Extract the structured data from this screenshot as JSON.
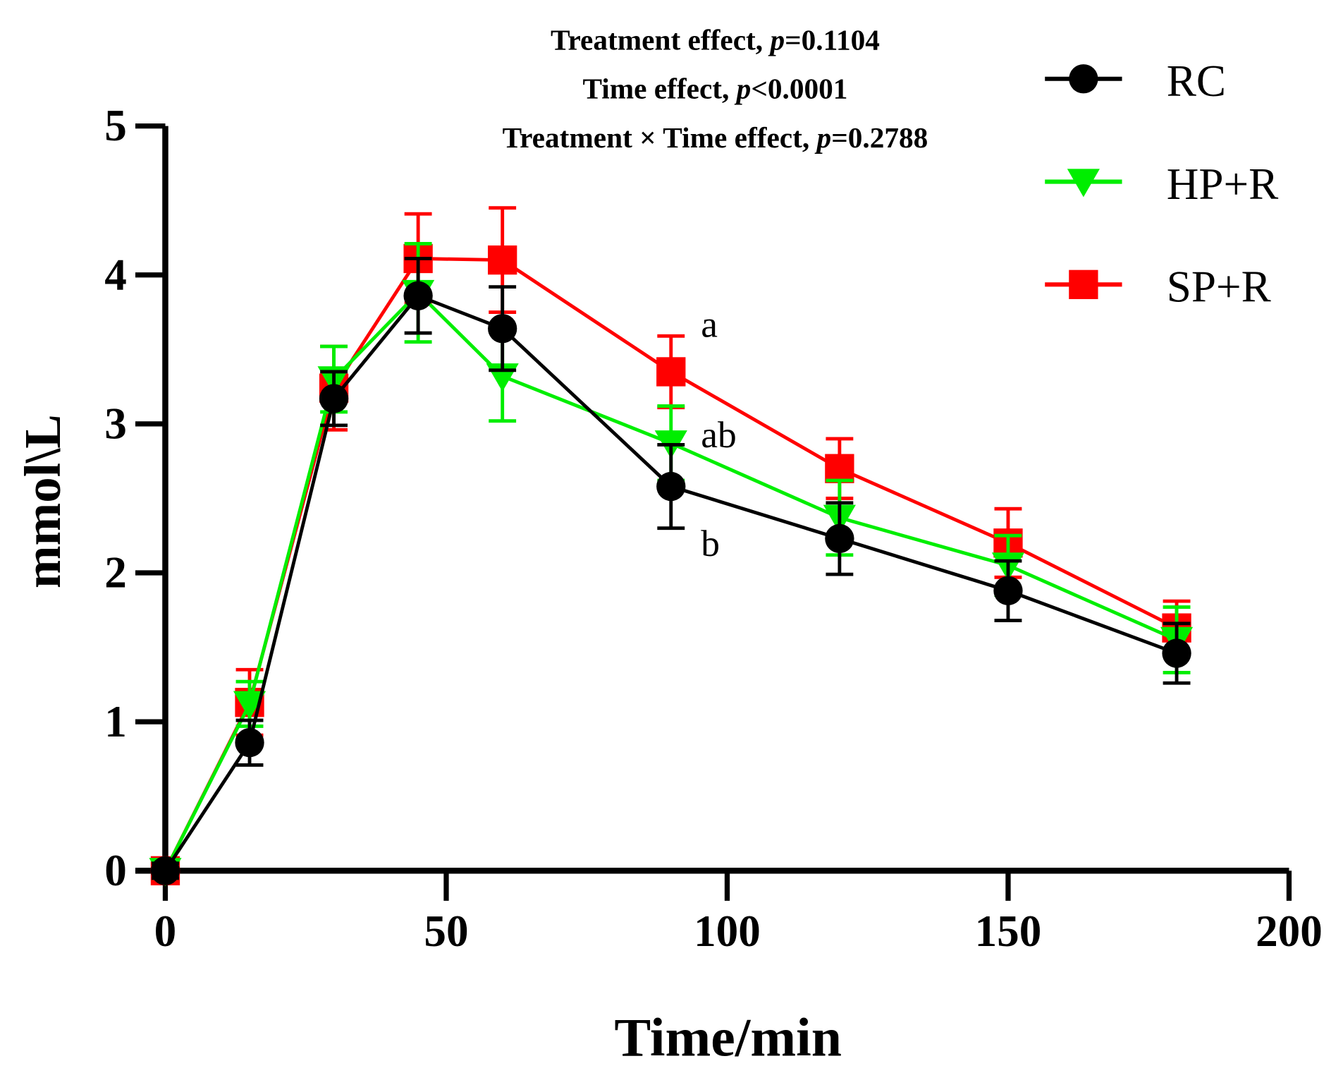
{
  "chart_data": {
    "type": "line",
    "title_lines": [
      {
        "text": "Treatment effect, ",
        "p": "p",
        "rest": "=0.1104"
      },
      {
        "text": "Time effect, ",
        "p": "p",
        "rest": "<0.0001"
      },
      {
        "text": "Treatment × Time effect, ",
        "p": "p",
        "rest": "=0.2788"
      }
    ],
    "xlabel": "Time/min",
    "ylabel": "mmol\\L",
    "xlim": [
      0,
      200
    ],
    "ylim": [
      0,
      5
    ],
    "xticks": [
      0,
      50,
      100,
      150,
      200
    ],
    "yticks": [
      0,
      1,
      2,
      3,
      4,
      5
    ],
    "legend_position": "top-right",
    "x": [
      0,
      15,
      30,
      45,
      60,
      90,
      120,
      150,
      180
    ],
    "series": [
      {
        "name": "RC",
        "color": "#000000",
        "marker": "circle",
        "values": [
          0,
          0.86,
          3.17,
          3.86,
          3.64,
          2.58,
          2.23,
          1.88,
          1.46
        ],
        "errors": [
          0.05,
          0.15,
          0.18,
          0.25,
          0.28,
          0.28,
          0.24,
          0.2,
          0.2
        ]
      },
      {
        "name": "HP+R",
        "color": "#00ee00",
        "marker": "triangle-down",
        "values": [
          0,
          1.12,
          3.3,
          3.88,
          3.32,
          2.87,
          2.37,
          2.05,
          1.55
        ],
        "errors": [
          0.05,
          0.15,
          0.22,
          0.33,
          0.3,
          0.25,
          0.25,
          0.2,
          0.22
        ]
      },
      {
        "name": "SP+R",
        "color": "#ff0000",
        "marker": "square",
        "values": [
          0,
          1.13,
          3.24,
          4.11,
          4.1,
          3.35,
          2.7,
          2.2,
          1.63
        ],
        "errors": [
          0.05,
          0.22,
          0.28,
          0.3,
          0.35,
          0.24,
          0.2,
          0.23,
          0.18
        ]
      }
    ],
    "annotations": [
      {
        "text": "a",
        "x": 90,
        "y": 3.67
      },
      {
        "text": "ab",
        "x": 90,
        "y": 2.93
      },
      {
        "text": "b",
        "x": 90,
        "y": 2.2
      }
    ]
  }
}
